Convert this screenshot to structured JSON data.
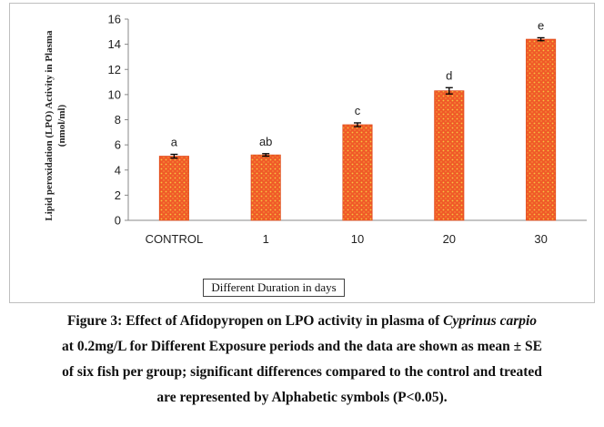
{
  "chart_data": {
    "type": "bar",
    "categories": [
      "CONTROL",
      "1",
      "10",
      "20",
      "30"
    ],
    "values": [
      5.1,
      5.2,
      7.6,
      10.3,
      14.4
    ],
    "errors": [
      0.15,
      0.1,
      0.15,
      0.25,
      0.12
    ],
    "significance_letters": [
      "a",
      "ab",
      "c",
      "d",
      "e"
    ],
    "ylabel_line1": "Lipid peroxidation (LPO) Activity in Plasma",
    "ylabel_line2": "(nmol/ml)",
    "xlabel": "Different Duration in days",
    "ylim": [
      0,
      16
    ],
    "yticks": [
      0,
      2,
      4,
      6,
      8,
      10,
      12,
      14,
      16
    ],
    "grid": false,
    "bar_color": "#f05a28",
    "bar_dot_color": "#f5c542",
    "errorbar_color": "#000000"
  },
  "caption": {
    "line1_prefix": "Figure 3: Effect of Afidopyropen on LPO activity in plasma of ",
    "line1_species": "Cyprinus carpio",
    "line2": "at 0.2mg/L for Different Exposure periods and the data are shown as mean ± SE",
    "line3": "of six fish per group; significant differences compared to the control and treated",
    "line4": "are represented by Alphabetic symbols (P<0.05)."
  }
}
